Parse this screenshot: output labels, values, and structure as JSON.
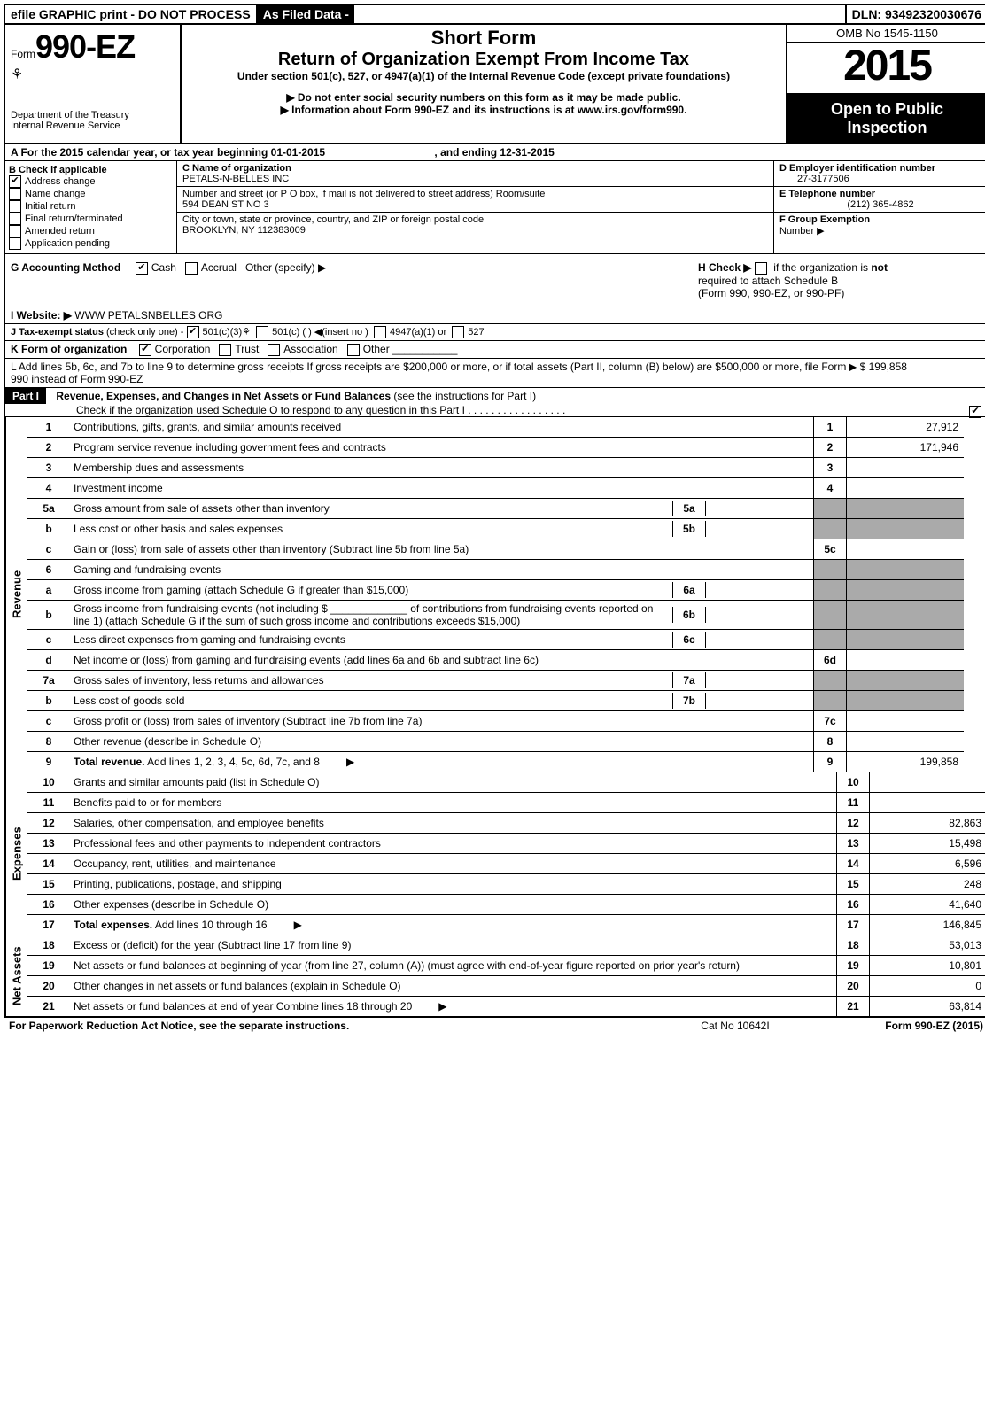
{
  "topbar": {
    "left": "efile GRAPHIC print - DO NOT PROCESS",
    "mid": "As Filed Data -",
    "right": "DLN: 93492320030676"
  },
  "header": {
    "form_prefix": "Form",
    "form_number": "990-EZ",
    "dept1": "Department of the Treasury",
    "dept2": "Internal Revenue Service",
    "short_form": "Short Form",
    "title": "Return of Organization Exempt From Income Tax",
    "subtitle": "Under section 501(c), 527, or 4947(a)(1) of the Internal Revenue Code (except private foundations)",
    "warn1": "▶ Do not enter social security numbers on this form as it may be made public.",
    "warn2_pre": "▶ Information about Form 990-EZ and its instructions is at ",
    "warn2_link": "www.irs.gov/form990",
    "warn2_post": ".",
    "omb": "OMB No 1545-1150",
    "year": "2015",
    "open1": "Open to Public",
    "open2": "Inspection"
  },
  "sectionA": {
    "a_text": "A  For the 2015 calendar year, or tax year beginning 01-01-2015",
    "a_end": ", and ending 12-31-2015",
    "b_label": "B  Check if applicable",
    "b_items": [
      "Address change",
      "Name change",
      "Initial return",
      "Final return/terminated",
      "Amended return",
      "Application pending"
    ],
    "c_name_label": "C Name of organization",
    "c_name": "PETALS-N-BELLES INC",
    "c_street_label": "Number and street (or P O box, if mail is not delivered to street address) Room/suite",
    "c_street": "594 DEAN ST NO 3",
    "c_city_label": "City or town, state or province, country, and ZIP or foreign postal code",
    "c_city": "BROOKLYN, NY  112383009",
    "d_label": "D Employer identification number",
    "d_val": "27-3177506",
    "e_label": "E Telephone number",
    "e_val": "(212) 365-4862",
    "f_label": "F Group Exemption",
    "f_label2": "Number    ▶"
  },
  "gToK": {
    "g_label": "G Accounting Method",
    "g_opts": [
      "Cash",
      "Accrual",
      "Other (specify) ▶"
    ],
    "h_text1": "H  Check ▶",
    "h_text2": "if the organization is ",
    "h_not": "not",
    "h_text3": "required to attach Schedule B",
    "h_text4": "(Form 990, 990-EZ, or 990-PF)",
    "i_label": "I Website: ▶",
    "i_val": "WWW PETALSNBELLES ORG",
    "j_label": "J Tax-exempt status",
    "j_note": "(check only one) -",
    "j_opts": [
      "501(c)(3)",
      "501(c) (   ) ◀(insert no )",
      "4947(a)(1) or",
      "527"
    ],
    "k_label": "K Form of organization",
    "k_opts": [
      "Corporation",
      "Trust",
      "Association",
      "Other"
    ],
    "l_text": "L Add lines 5b, 6c, and 7b to line 9 to determine gross receipts  If gross receipts are $200,000 or more, or if total assets (Part II, column (B) below) are $500,000 or more, file Form 990 instead of Form 990-EZ",
    "l_amount": "▶ $ 199,858"
  },
  "part1": {
    "label": "Part I",
    "title": "Revenue, Expenses, and Changes in Net Assets or Fund Balances",
    "title_note": " (see the instructions for Part I)",
    "check_line": "Check if the organization used Schedule O to respond to any question in this Part I . . . . . . . . . . . . . . . . ."
  },
  "lines": [
    {
      "n": "1",
      "d": "Contributions, gifts, grants, and similar amounts received",
      "b": "1",
      "v": "27,912"
    },
    {
      "n": "2",
      "d": "Program service revenue including government fees and contracts",
      "b": "2",
      "v": "171,946"
    },
    {
      "n": "3",
      "d": "Membership dues and assessments",
      "b": "3",
      "v": ""
    },
    {
      "n": "4",
      "d": "Investment income",
      "b": "4",
      "v": ""
    },
    {
      "n": "5a",
      "d": "Gross amount from sale of assets other than inventory",
      "mb": "5a",
      "shaded": true
    },
    {
      "n": "b",
      "d": "Less  cost or other basis and sales expenses",
      "mb": "5b",
      "shaded": true
    },
    {
      "n": "c",
      "d": "Gain or (loss) from sale of assets other than inventory (Subtract line 5b from line 5a)",
      "b": "5c",
      "v": ""
    },
    {
      "n": "6",
      "d": "Gaming and fundraising events",
      "noval": true,
      "shaded": true
    },
    {
      "n": "a",
      "d": "Gross income from gaming (attach Schedule G if greater than $15,000)",
      "mb": "6a",
      "shaded": true
    },
    {
      "n": "b",
      "d": "Gross income from fundraising events (not including $ _____________ of contributions from fundraising events reported on line 1) (attach Schedule G if the sum of such gross income and contributions exceeds $15,000)",
      "mb": "6b",
      "shaded": true
    },
    {
      "n": "c",
      "d": "Less  direct expenses from gaming and fundraising events",
      "mb": "6c",
      "shaded": true
    },
    {
      "n": "d",
      "d": "Net income or (loss) from gaming and fundraising events (add lines 6a and 6b and subtract line 6c)",
      "b": "6d",
      "v": ""
    },
    {
      "n": "7a",
      "d": "Gross sales of inventory, less returns and allowances",
      "mb": "7a",
      "shaded": true
    },
    {
      "n": "b",
      "d": "Less  cost of goods sold",
      "mb": "7b",
      "shaded": true
    },
    {
      "n": "c",
      "d": "Gross profit or (loss) from sales of inventory (Subtract line 7b from line 7a)",
      "b": "7c",
      "v": ""
    },
    {
      "n": "8",
      "d": "Other revenue (describe in Schedule O)",
      "b": "8",
      "v": ""
    },
    {
      "n": "9",
      "d": "Total revenue. Add lines 1, 2, 3, 4, 5c, 6d, 7c, and 8",
      "b": "9",
      "v": "199,858",
      "bold": true,
      "arrow": true
    }
  ],
  "expenses": [
    {
      "n": "10",
      "d": "Grants and similar amounts paid (list in Schedule O)",
      "b": "10",
      "v": ""
    },
    {
      "n": "11",
      "d": "Benefits paid to or for members",
      "b": "11",
      "v": ""
    },
    {
      "n": "12",
      "d": "Salaries, other compensation, and employee benefits",
      "b": "12",
      "v": "82,863"
    },
    {
      "n": "13",
      "d": "Professional fees and other payments to independent contractors",
      "b": "13",
      "v": "15,498"
    },
    {
      "n": "14",
      "d": "Occupancy, rent, utilities, and maintenance",
      "b": "14",
      "v": "6,596"
    },
    {
      "n": "15",
      "d": "Printing, publications, postage, and shipping",
      "b": "15",
      "v": "248"
    },
    {
      "n": "16",
      "d": "Other expenses (describe in Schedule O)",
      "b": "16",
      "v": "41,640"
    },
    {
      "n": "17",
      "d": "Total expenses. Add lines 10 through 16",
      "b": "17",
      "v": "146,845",
      "bold": true,
      "arrow": true
    }
  ],
  "netassets": [
    {
      "n": "18",
      "d": "Excess or (deficit) for the year (Subtract line 17 from line 9)",
      "b": "18",
      "v": "53,013"
    },
    {
      "n": "19",
      "d": "Net assets or fund balances at beginning of year (from line 27, column (A)) (must agree with end-of-year figure reported on prior year's return)",
      "b": "19",
      "v": "10,801"
    },
    {
      "n": "20",
      "d": "Other changes in net assets or fund balances (explain in Schedule O)",
      "b": "20",
      "v": "0"
    },
    {
      "n": "21",
      "d": "Net assets or fund balances at end of year  Combine lines 18 through 20",
      "b": "21",
      "v": "63,814",
      "arrow": true
    }
  ],
  "side_labels": {
    "revenue": "Revenue",
    "expenses": "Expenses",
    "netassets": "Net Assets"
  },
  "footer": {
    "left": "For Paperwork Reduction Act Notice, see the separate instructions.",
    "mid": "Cat No 10642I",
    "right": "Form 990-EZ (2015)"
  }
}
